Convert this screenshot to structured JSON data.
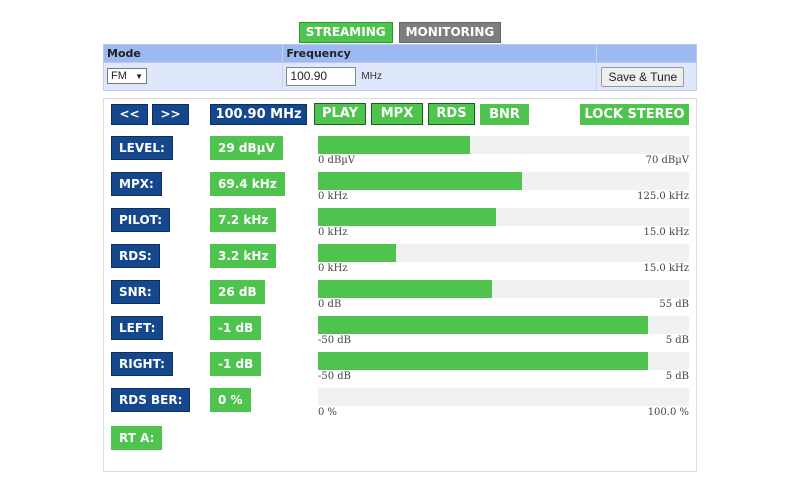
{
  "tabs": [
    {
      "label": "STREAMING",
      "active": true
    },
    {
      "label": "MONITORING",
      "active": false
    }
  ],
  "settings": {
    "mode_header": "Mode",
    "frequency_header": "Frequency",
    "mode_value": "FM",
    "frequency_value": "100.90",
    "frequency_unit": "MHz",
    "tune_button": "Save & Tune"
  },
  "controls": {
    "prev": "<<",
    "next": ">>",
    "frequency_display": "100.90 MHz",
    "play": "PLAY",
    "mpx": "MPX",
    "rds": "RDS",
    "bnr": "BNR",
    "lock_stereo": "LOCK STEREO"
  },
  "meters": [
    {
      "label": "LEVEL:",
      "value": "29 dBµV",
      "fraction": 0.41,
      "min": "0 dBµV",
      "max": "70 dBµV"
    },
    {
      "label": "MPX:",
      "value": "69.4 kHz",
      "fraction": 0.55,
      "min": "0 kHz",
      "max": "125.0 kHz"
    },
    {
      "label": "PILOT:",
      "value": "7.2 kHz",
      "fraction": 0.48,
      "min": "0 kHz",
      "max": "15.0 kHz"
    },
    {
      "label": "RDS:",
      "value": "3.2 kHz",
      "fraction": 0.21,
      "min": "0 kHz",
      "max": "15.0 kHz"
    },
    {
      "label": "SNR:",
      "value": "26 dB",
      "fraction": 0.47,
      "min": "0 dB",
      "max": "55 dB"
    },
    {
      "label": "LEFT:",
      "value": "-1 dB",
      "fraction": 0.89,
      "min": "-50 dB",
      "max": "5 dB"
    },
    {
      "label": "RIGHT:",
      "value": "-1 dB",
      "fraction": 0.89,
      "min": "-50 dB",
      "max": "5 dB"
    },
    {
      "label": "RDS BER:",
      "value": "0 %",
      "fraction": 0.0,
      "min": "0 %",
      "max": "100.0 %"
    }
  ],
  "rt_label": "RT A:",
  "colors": {
    "accent_green": "#4ec44e",
    "label_blue": "#15478c",
    "header_blue": "#9db9f1"
  }
}
